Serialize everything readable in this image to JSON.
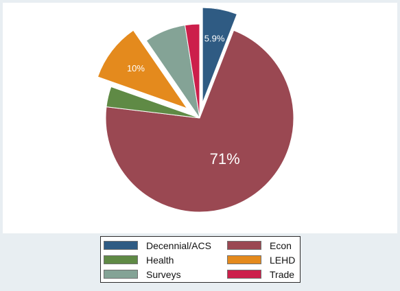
{
  "chart_data": {
    "type": "pie",
    "slices": [
      {
        "label": "Decennial/ACS",
        "value": 5.9,
        "color": "#2f5b83",
        "exploded": true,
        "data_label": "5.9%"
      },
      {
        "label": "Econ",
        "value": 71,
        "color": "#9a4852",
        "exploded": false,
        "data_label": "71%"
      },
      {
        "label": "Health",
        "value": 3.5,
        "color": "#5f8a45",
        "exploded": false,
        "data_label": ""
      },
      {
        "label": "LEHD",
        "value": 10,
        "color": "#e48a1d",
        "exploded": true,
        "data_label": "10%"
      },
      {
        "label": "Surveys",
        "value": 7.1,
        "color": "#84a396",
        "exploded": false,
        "data_label": ""
      },
      {
        "label": "Trade",
        "value": 2.5,
        "color": "#cc1f4b",
        "exploded": false,
        "data_label": ""
      }
    ],
    "legend": {
      "position": "bottom",
      "columns": 2,
      "entries": [
        "Decennial/ACS",
        "Econ",
        "Health",
        "LEHD",
        "Surveys",
        "Trade"
      ]
    }
  },
  "colors": {
    "background": "#e8eef2",
    "plot_background": "#ffffff",
    "label_text": "#ffffff"
  }
}
